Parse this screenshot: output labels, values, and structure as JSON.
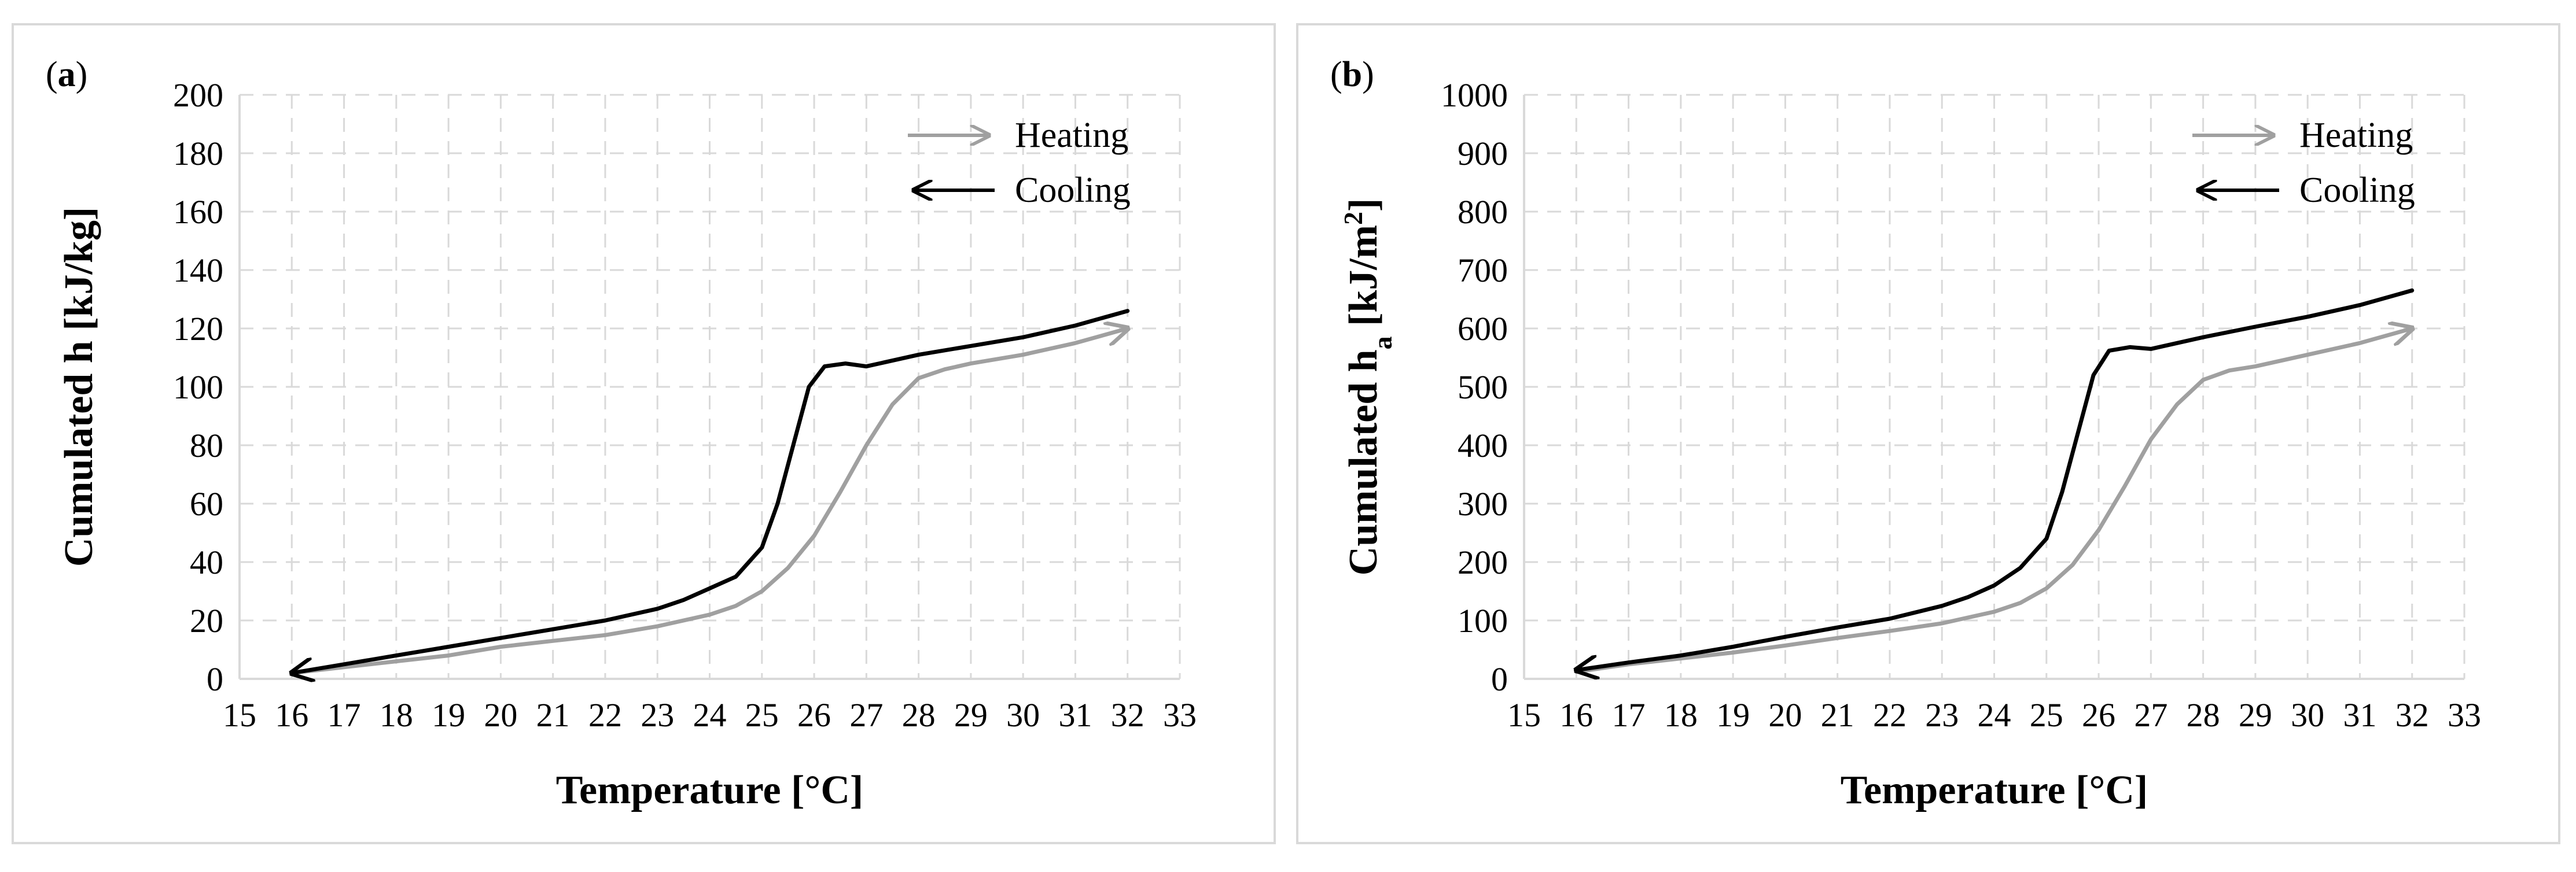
{
  "chart_data": [
    {
      "type": "line",
      "panel_label": "(a)",
      "xlabel": "Temperature [°C]",
      "ylabel": "Cumulated h [kJ/kg]",
      "ylabel_sub": "",
      "ylabel_unit_sup": "",
      "ylabel_tail": "",
      "xlim": [
        15,
        33
      ],
      "ylim": [
        0,
        200
      ],
      "xticks": [
        15,
        16,
        17,
        18,
        19,
        20,
        21,
        22,
        23,
        24,
        25,
        26,
        27,
        28,
        29,
        30,
        31,
        32,
        33
      ],
      "yticks": [
        0,
        20,
        40,
        60,
        80,
        100,
        120,
        140,
        160,
        180,
        200
      ],
      "grid": true,
      "legend": [
        {
          "name": "Heating",
          "color": "#a0a0a0",
          "arrow": "right"
        },
        {
          "name": "Cooling",
          "color": "#000000",
          "arrow": "left"
        }
      ],
      "series": [
        {
          "name": "Heating",
          "color": "#a0a0a0",
          "arrow_at": "end",
          "x": [
            16,
            17,
            18,
            19,
            20,
            21,
            22,
            23,
            24,
            24.5,
            25,
            25.5,
            26,
            26.5,
            27,
            27.5,
            28,
            28.5,
            29,
            30,
            31,
            32
          ],
          "y": [
            2,
            4,
            6,
            8,
            11,
            13,
            15,
            18,
            22,
            25,
            30,
            38,
            49,
            64,
            80,
            94,
            103,
            106,
            108,
            111,
            115,
            120
          ]
        },
        {
          "name": "Cooling",
          "color": "#000000",
          "arrow_at": "start",
          "x": [
            16,
            17,
            18,
            19,
            20,
            21,
            22,
            23,
            23.5,
            24,
            24.5,
            25,
            25.3,
            25.6,
            25.9,
            26.2,
            26.6,
            27,
            28,
            29,
            30,
            31,
            32
          ],
          "y": [
            2,
            5,
            8,
            11,
            14,
            17,
            20,
            24,
            27,
            31,
            35,
            45,
            60,
            80,
            100,
            107,
            108,
            107,
            111,
            114,
            117,
            121,
            126
          ]
        }
      ]
    },
    {
      "type": "line",
      "panel_label": "(b)",
      "xlabel": "Temperature [°C]",
      "ylabel": "Cumulated h",
      "ylabel_sub": "a",
      "ylabel_unit_sup": "2",
      "ylabel_tail": "]",
      "ylabel_unit": " [kJ/m",
      "xlim": [
        15,
        33
      ],
      "ylim": [
        0,
        1000
      ],
      "xticks": [
        15,
        16,
        17,
        18,
        19,
        20,
        21,
        22,
        23,
        24,
        25,
        26,
        27,
        28,
        29,
        30,
        31,
        32,
        33
      ],
      "yticks": [
        0,
        100,
        200,
        300,
        400,
        500,
        600,
        700,
        800,
        900,
        1000
      ],
      "grid": true,
      "legend": [
        {
          "name": "Heating",
          "color": "#a0a0a0",
          "arrow": "right"
        },
        {
          "name": "Cooling",
          "color": "#000000",
          "arrow": "left"
        }
      ],
      "series": [
        {
          "name": "Heating",
          "color": "#a0a0a0",
          "arrow_at": "end",
          "x": [
            16,
            17,
            18,
            19,
            20,
            21,
            22,
            23,
            24,
            24.5,
            25,
            25.5,
            26,
            26.5,
            27,
            27.5,
            28,
            28.5,
            29,
            30,
            31,
            32
          ],
          "y": [
            12,
            25,
            35,
            45,
            57,
            70,
            82,
            95,
            115,
            130,
            155,
            195,
            255,
            330,
            410,
            470,
            512,
            528,
            535,
            555,
            575,
            600
          ]
        },
        {
          "name": "Cooling",
          "color": "#000000",
          "arrow_at": "start",
          "x": [
            16,
            17,
            18,
            19,
            20,
            21,
            22,
            23,
            23.5,
            24,
            24.5,
            25,
            25.3,
            25.6,
            25.9,
            26.2,
            26.6,
            27,
            28,
            29,
            30,
            31,
            32
          ],
          "y": [
            15,
            28,
            40,
            55,
            72,
            88,
            103,
            125,
            140,
            160,
            190,
            240,
            320,
            420,
            520,
            562,
            568,
            565,
            585,
            603,
            620,
            640,
            665
          ]
        }
      ]
    }
  ]
}
